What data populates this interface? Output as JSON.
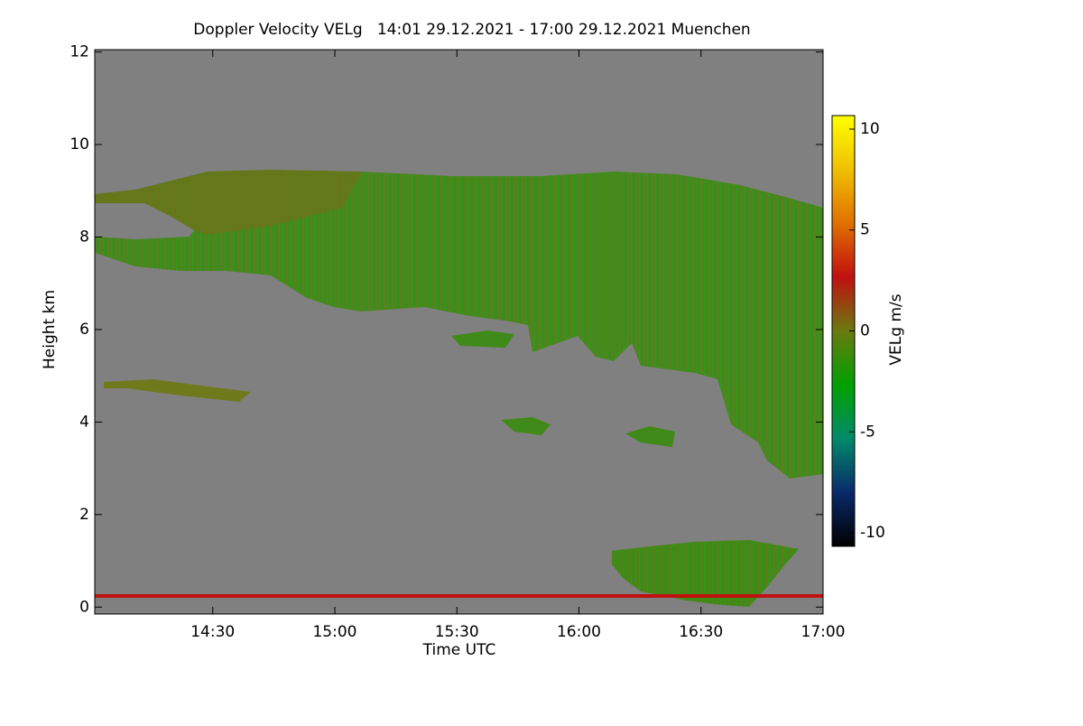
{
  "chart_data": {
    "type": "heatmap",
    "title": "Doppler Velocity VELg   14:01 29.12.2021 - 17:00 29.12.2021 Muenchen",
    "xlabel": "Time UTC",
    "ylabel": "Height km",
    "xlim": [
      14.0167,
      17.0
    ],
    "xticks": [
      {
        "value": 14.5,
        "label": "14:30"
      },
      {
        "value": 15.0,
        "label": "15:00"
      },
      {
        "value": 15.5,
        "label": "15:30"
      },
      {
        "value": 16.0,
        "label": "16:00"
      },
      {
        "value": 16.5,
        "label": "16:30"
      },
      {
        "value": 17.0,
        "label": "17:00"
      }
    ],
    "ylim": [
      -0.15,
      12.05
    ],
    "yticks": [
      0,
      2,
      4,
      6,
      8,
      10,
      12
    ],
    "colorbar_label": "VELg m/s",
    "clim": [
      -10.67,
      10.67
    ],
    "cticks": [
      -10,
      -5,
      0,
      5,
      10
    ],
    "colorscale": [
      "#000000",
      "#0a2a6a",
      "#008a6a",
      "#00a000",
      "#6a7a10",
      "#c01010",
      "#e07000",
      "#f0c000",
      "#ffff00"
    ],
    "background": "#808080"
  }
}
